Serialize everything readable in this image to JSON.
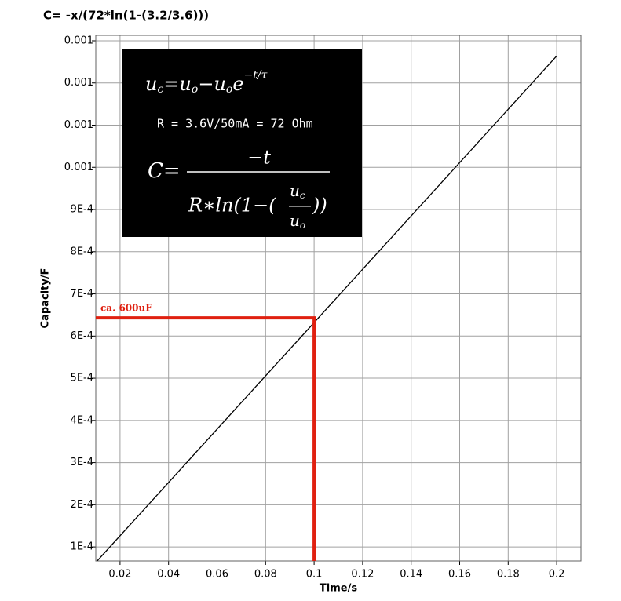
{
  "chart_data": {
    "type": "line",
    "title": "C= -x/(72*ln(1-(3.2/3.6)))",
    "x_label": "Time/s",
    "y_label": "Capacity/F",
    "x": [
      0.01,
      0.2
    ],
    "series": [
      {
        "color": "#000000",
        "values": [
          6.32e-05,
          0.001264
        ]
      }
    ],
    "xlim": [
      0.01,
      0.21
    ],
    "ylim": [
      6.67e-05,
      0.001313
    ],
    "xticks": [
      0.02,
      0.04,
      0.06,
      0.08,
      0.1,
      0.12,
      0.14,
      0.16,
      0.18,
      0.2
    ],
    "yticks": [
      {
        "value": 0.0001,
        "label": "1E-4"
      },
      {
        "value": 0.0002,
        "label": "2E-4"
      },
      {
        "value": 0.0003,
        "label": "3E-4"
      },
      {
        "value": 0.0004,
        "label": "4E-4"
      },
      {
        "value": 0.0005,
        "label": "5E-4"
      },
      {
        "value": 0.0006,
        "label": "6E-4"
      },
      {
        "value": 0.0007,
        "label": "7E-4"
      },
      {
        "value": 0.0008,
        "label": "8E-4"
      },
      {
        "value": 0.0009,
        "label": "9E-4"
      },
      {
        "value": 0.001,
        "label": "0.001"
      },
      {
        "value": 0.0011,
        "label": "0.001"
      },
      {
        "value": 0.0012,
        "label": "0.001"
      },
      {
        "value": 0.0013,
        "label": "0.001"
      }
    ],
    "grid": true,
    "annotation": {
      "text": "ca. 600uF",
      "x": 0.1,
      "y": 0.000643,
      "color": "#e02010"
    },
    "inset": {
      "formula_1": [
        "u",
        "c",
        "=u",
        "o",
        "−u",
        "o",
        "e",
        "−t/τ"
      ],
      "formula_2": "R = 3.6V/50mA = 72 Ohm",
      "formula_3": [
        "C=",
        "−t",
        "R∗ln(1−(",
        "u",
        "c",
        "u",
        "o",
        "))"
      ]
    }
  }
}
